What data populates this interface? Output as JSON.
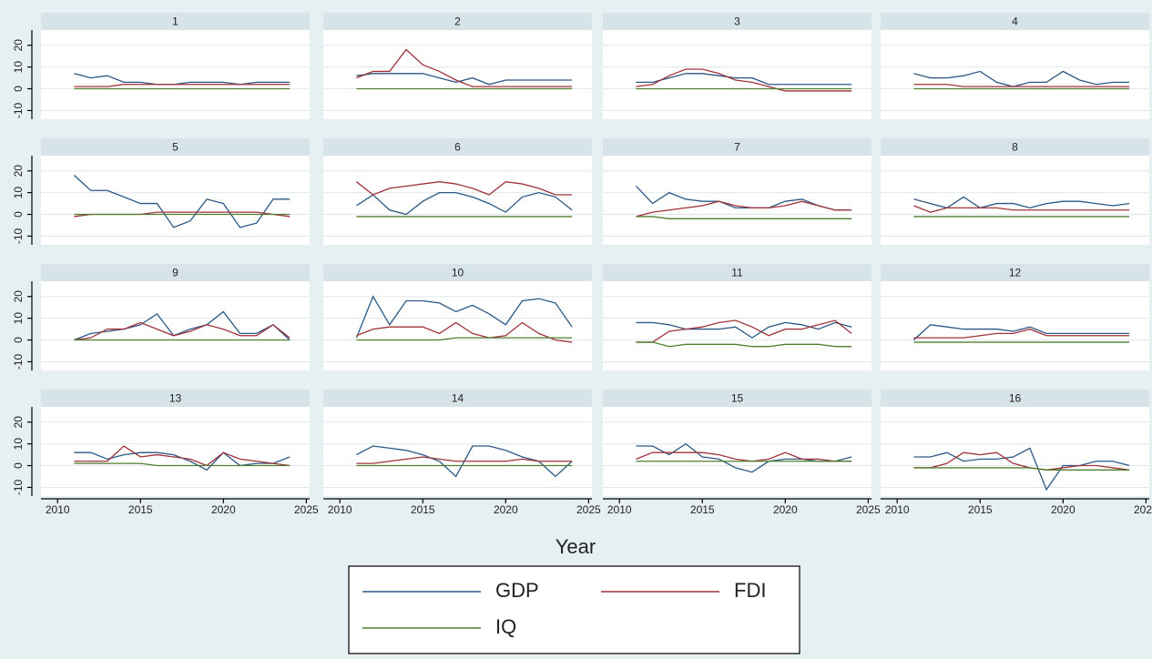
{
  "chart_data": {
    "type": "line",
    "xlabel": "Year",
    "x": [
      2011,
      2012,
      2013,
      2014,
      2015,
      2016,
      2017,
      2018,
      2019,
      2020,
      2021,
      2022,
      2023,
      2024
    ],
    "xlim": [
      2009,
      2025.2
    ],
    "xticks": [
      2010,
      2015,
      2020,
      2025
    ],
    "ylim": [
      -14,
      27
    ],
    "yticks": [
      -10,
      0,
      10,
      20
    ],
    "grid": true,
    "legend": [
      {
        "name": "GDP",
        "color": "#2b5883"
      },
      {
        "name": "FDI",
        "color": "#a0333a"
      },
      {
        "name": "IQ",
        "color": "#4f7f2e"
      }
    ],
    "panels": [
      {
        "title": "1",
        "series": [
          {
            "values": [
              7,
              5,
              6,
              3,
              3,
              2,
              2,
              3,
              3,
              3,
              2,
              3,
              3,
              3
            ]
          },
          {
            "values": [
              1,
              1,
              1,
              2,
              2,
              2,
              2,
              2,
              2,
              2,
              2,
              2,
              2,
              2
            ]
          },
          {
            "values": [
              0,
              0,
              0,
              0,
              0,
              0,
              0,
              0,
              0,
              0,
              0,
              0,
              0,
              0
            ]
          }
        ]
      },
      {
        "title": "2",
        "series": [
          {
            "values": [
              6,
              7,
              7,
              7,
              7,
              5,
              3,
              5,
              2,
              4,
              4,
              4,
              4,
              4
            ]
          },
          {
            "values": [
              5,
              8,
              8,
              18,
              11,
              8,
              4,
              1,
              1,
              1,
              1,
              1,
              1,
              1
            ]
          },
          {
            "values": [
              0,
              0,
              0,
              0,
              0,
              0,
              0,
              0,
              0,
              0,
              0,
              0,
              0,
              0
            ]
          }
        ]
      },
      {
        "title": "3",
        "series": [
          {
            "values": [
              3,
              3,
              5,
              7,
              7,
              6,
              5,
              5,
              2,
              2,
              2,
              2,
              2,
              2
            ]
          },
          {
            "values": [
              1,
              2,
              6,
              9,
              9,
              7,
              4,
              3,
              1,
              -1,
              -1,
              -1,
              -1,
              -1
            ]
          },
          {
            "values": [
              0,
              0,
              0,
              0,
              0,
              0,
              0,
              0,
              0,
              0,
              0,
              0,
              0,
              0
            ]
          }
        ]
      },
      {
        "title": "4",
        "series": [
          {
            "values": [
              7,
              5,
              5,
              6,
              8,
              3,
              1,
              3,
              3,
              8,
              4,
              2,
              3,
              3
            ]
          },
          {
            "values": [
              2,
              2,
              2,
              1,
              1,
              1,
              1,
              1,
              1,
              1,
              1,
              1,
              1,
              1
            ]
          },
          {
            "values": [
              0,
              0,
              0,
              0,
              0,
              0,
              0,
              0,
              0,
              0,
              0,
              0,
              0,
              0
            ]
          }
        ]
      },
      {
        "title": "5",
        "series": [
          {
            "values": [
              18,
              11,
              11,
              8,
              5,
              5,
              -6,
              -3,
              7,
              5,
              -6,
              -4,
              7,
              7
            ]
          },
          {
            "values": [
              -1,
              0,
              0,
              0,
              0,
              1,
              1,
              1,
              1,
              1,
              1,
              1,
              0,
              -1
            ]
          },
          {
            "values": [
              0,
              0,
              0,
              0,
              0,
              0,
              0,
              0,
              0,
              0,
              0,
              0,
              0,
              0
            ]
          }
        ]
      },
      {
        "title": "6",
        "series": [
          {
            "values": [
              4,
              9,
              2,
              0,
              6,
              10,
              10,
              8,
              5,
              1,
              8,
              10,
              8,
              2
            ]
          },
          {
            "values": [
              15,
              9,
              12,
              13,
              14,
              15,
              14,
              12,
              9,
              15,
              14,
              12,
              9,
              9
            ]
          },
          {
            "values": [
              -1,
              -1,
              -1,
              -1,
              -1,
              -1,
              -1,
              -1,
              -1,
              -1,
              -1,
              -1,
              -1,
              -1
            ]
          }
        ]
      },
      {
        "title": "7",
        "series": [
          {
            "values": [
              13,
              5,
              10,
              7,
              6,
              6,
              3,
              3,
              3,
              6,
              7,
              4,
              2,
              2
            ]
          },
          {
            "values": [
              -1,
              1,
              2,
              3,
              4,
              6,
              4,
              3,
              3,
              4,
              6,
              4,
              2,
              2
            ]
          },
          {
            "values": [
              -1,
              -1,
              -2,
              -2,
              -2,
              -2,
              -2,
              -2,
              -2,
              -2,
              -2,
              -2,
              -2,
              -2
            ]
          }
        ]
      },
      {
        "title": "8",
        "series": [
          {
            "values": [
              7,
              5,
              3,
              8,
              3,
              5,
              5,
              3,
              5,
              6,
              6,
              5,
              4,
              5
            ]
          },
          {
            "values": [
              4,
              1,
              3,
              3,
              3,
              3,
              2,
              2,
              2,
              2,
              2,
              2,
              2,
              2
            ]
          },
          {
            "values": [
              -1,
              -1,
              -1,
              -1,
              -1,
              -1,
              -1,
              -1,
              -1,
              -1,
              -1,
              -1,
              -1,
              -1
            ]
          }
        ]
      },
      {
        "title": "9",
        "series": [
          {
            "values": [
              0,
              3,
              4,
              5,
              7,
              12,
              2,
              5,
              7,
              13,
              3,
              3,
              7,
              0
            ]
          },
          {
            "values": [
              0,
              1,
              5,
              5,
              8,
              5,
              2,
              4,
              7,
              5,
              2,
              2,
              7,
              1
            ]
          },
          {
            "values": [
              0,
              0,
              0,
              0,
              0,
              0,
              0,
              0,
              0,
              0,
              0,
              0,
              0,
              0
            ]
          }
        ]
      },
      {
        "title": "10",
        "series": [
          {
            "values": [
              1,
              20,
              7,
              18,
              18,
              17,
              13,
              16,
              12,
              7,
              18,
              19,
              17,
              6
            ]
          },
          {
            "values": [
              2,
              5,
              6,
              6,
              6,
              3,
              8,
              3,
              1,
              2,
              8,
              3,
              0,
              -1
            ]
          },
          {
            "values": [
              0,
              0,
              0,
              0,
              0,
              0,
              1,
              1,
              1,
              1,
              1,
              1,
              1,
              1
            ]
          }
        ]
      },
      {
        "title": "11",
        "series": [
          {
            "values": [
              8,
              8,
              7,
              5,
              5,
              5,
              6,
              1,
              6,
              8,
              7,
              5,
              8,
              6
            ]
          },
          {
            "values": [
              -1,
              -1,
              4,
              5,
              6,
              8,
              9,
              6,
              2,
              5,
              5,
              7,
              9,
              3
            ]
          },
          {
            "values": [
              -1,
              -1,
              -3,
              -2,
              -2,
              -2,
              -2,
              -3,
              -3,
              -2,
              -2,
              -2,
              -3,
              -3
            ]
          }
        ]
      },
      {
        "title": "12",
        "series": [
          {
            "values": [
              0,
              7,
              6,
              5,
              5,
              5,
              4,
              6,
              3,
              3,
              3,
              3,
              3,
              3
            ]
          },
          {
            "values": [
              1,
              1,
              1,
              1,
              2,
              3,
              3,
              5,
              2,
              2,
              2,
              2,
              2,
              2
            ]
          },
          {
            "values": [
              -1,
              -1,
              -1,
              -1,
              -1,
              -1,
              -1,
              -1,
              -1,
              -1,
              -1,
              -1,
              -1,
              -1
            ]
          }
        ]
      },
      {
        "title": "13",
        "series": [
          {
            "values": [
              6,
              6,
              3,
              5,
              6,
              6,
              5,
              2,
              -2,
              6,
              0,
              1,
              1,
              4
            ]
          },
          {
            "values": [
              2,
              2,
              2,
              9,
              4,
              5,
              4,
              3,
              0,
              6,
              3,
              2,
              1,
              0
            ]
          },
          {
            "values": [
              1,
              1,
              1,
              1,
              1,
              0,
              0,
              0,
              0,
              0,
              0,
              0,
              0,
              0
            ]
          }
        ]
      },
      {
        "title": "14",
        "series": [
          {
            "values": [
              5,
              9,
              8,
              7,
              5,
              2,
              -5,
              9,
              9,
              7,
              4,
              2,
              -5,
              2
            ]
          },
          {
            "values": [
              1,
              1,
              2,
              3,
              4,
              3,
              2,
              2,
              2,
              2,
              3,
              2,
              2,
              2
            ]
          },
          {
            "values": [
              0,
              0,
              0,
              0,
              0,
              0,
              0,
              0,
              0,
              0,
              0,
              0,
              0,
              0
            ]
          }
        ]
      },
      {
        "title": "15",
        "series": [
          {
            "values": [
              9,
              9,
              5,
              10,
              4,
              3,
              -1,
              -3,
              2,
              3,
              3,
              2,
              2,
              4
            ]
          },
          {
            "values": [
              3,
              6,
              6,
              6,
              6,
              5,
              3,
              2,
              3,
              6,
              3,
              3,
              2,
              2
            ]
          },
          {
            "values": [
              2,
              2,
              2,
              2,
              2,
              2,
              2,
              2,
              2,
              2,
              2,
              2,
              2,
              2
            ]
          }
        ]
      },
      {
        "title": "16",
        "series": [
          {
            "values": [
              4,
              4,
              6,
              2,
              3,
              3,
              4,
              8,
              -11,
              0,
              0,
              2,
              2,
              0
            ]
          },
          {
            "values": [
              -1,
              -1,
              1,
              6,
              5,
              6,
              1,
              -1,
              -2,
              -1,
              0,
              0,
              -1,
              -2
            ]
          },
          {
            "values": [
              -1,
              -1,
              -1,
              -1,
              -1,
              -1,
              -1,
              -1,
              -2,
              -2,
              -2,
              -2,
              -2,
              -2
            ]
          }
        ]
      }
    ]
  }
}
